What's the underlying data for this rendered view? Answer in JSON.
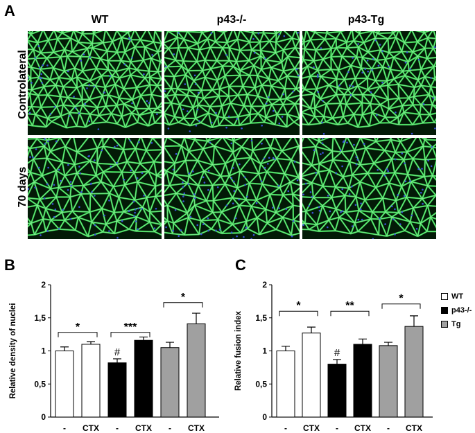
{
  "panel_a": {
    "letter": "A",
    "columns": [
      "WT",
      "p43-/-",
      "p43-Tg"
    ],
    "rows": [
      "Controlateral",
      "70 days"
    ],
    "colors": {
      "background": "#031a07",
      "membrane": "#3fe85a",
      "nuclei": "#3a52d8"
    }
  },
  "panel_b": {
    "letter": "B"
  },
  "panel_c": {
    "letter": "C"
  },
  "legend": {
    "items": [
      {
        "label": "WT",
        "color": "#ffffff"
      },
      {
        "label": "p43-/-",
        "color": "#000000"
      },
      {
        "label": "Tg",
        "color": "#a0a0a0"
      }
    ]
  },
  "chart_data": [
    {
      "type": "bar",
      "ylabel": "Relative density of nuclei",
      "ylim": [
        0,
        2
      ],
      "yticks": [
        "0",
        "0,5",
        "1",
        "1,5",
        "2"
      ],
      "categories": [
        "-",
        "CTX",
        "-",
        "CTX",
        "-",
        "CTX"
      ],
      "values": [
        1.0,
        1.1,
        0.82,
        1.16,
        1.05,
        1.41
      ],
      "errors": [
        0.06,
        0.04,
        0.06,
        0.05,
        0.08,
        0.16
      ],
      "bar_colors": [
        "#ffffff",
        "#ffffff",
        "#000000",
        "#000000",
        "#a0a0a0",
        "#a0a0a0"
      ],
      "hash_marks": [
        {
          "bar": 2,
          "label": "#"
        }
      ],
      "significance": [
        {
          "from": 0,
          "to": 1,
          "label": "*",
          "y": 1.28
        },
        {
          "from": 2,
          "to": 3,
          "label": "***",
          "y": 1.28
        },
        {
          "from": 4,
          "to": 5,
          "label": "*",
          "y": 1.73
        }
      ]
    },
    {
      "type": "bar",
      "ylabel": "Relative fusion index",
      "ylim": [
        0,
        2
      ],
      "yticks": [
        "0",
        "0,5",
        "1",
        "1,5",
        "2"
      ],
      "categories": [
        "-",
        "CTX",
        "-",
        "CTX",
        "-",
        "CTX"
      ],
      "values": [
        1.0,
        1.27,
        0.8,
        1.1,
        1.08,
        1.37
      ],
      "errors": [
        0.07,
        0.09,
        0.07,
        0.08,
        0.05,
        0.16
      ],
      "bar_colors": [
        "#ffffff",
        "#ffffff",
        "#000000",
        "#000000",
        "#a0a0a0",
        "#a0a0a0"
      ],
      "hash_marks": [
        {
          "bar": 2,
          "label": "#"
        }
      ],
      "significance": [
        {
          "from": 0,
          "to": 1,
          "label": "*",
          "y": 1.6
        },
        {
          "from": 2,
          "to": 3,
          "label": "**",
          "y": 1.6
        },
        {
          "from": 4,
          "to": 5,
          "label": "*",
          "y": 1.71
        }
      ]
    }
  ]
}
